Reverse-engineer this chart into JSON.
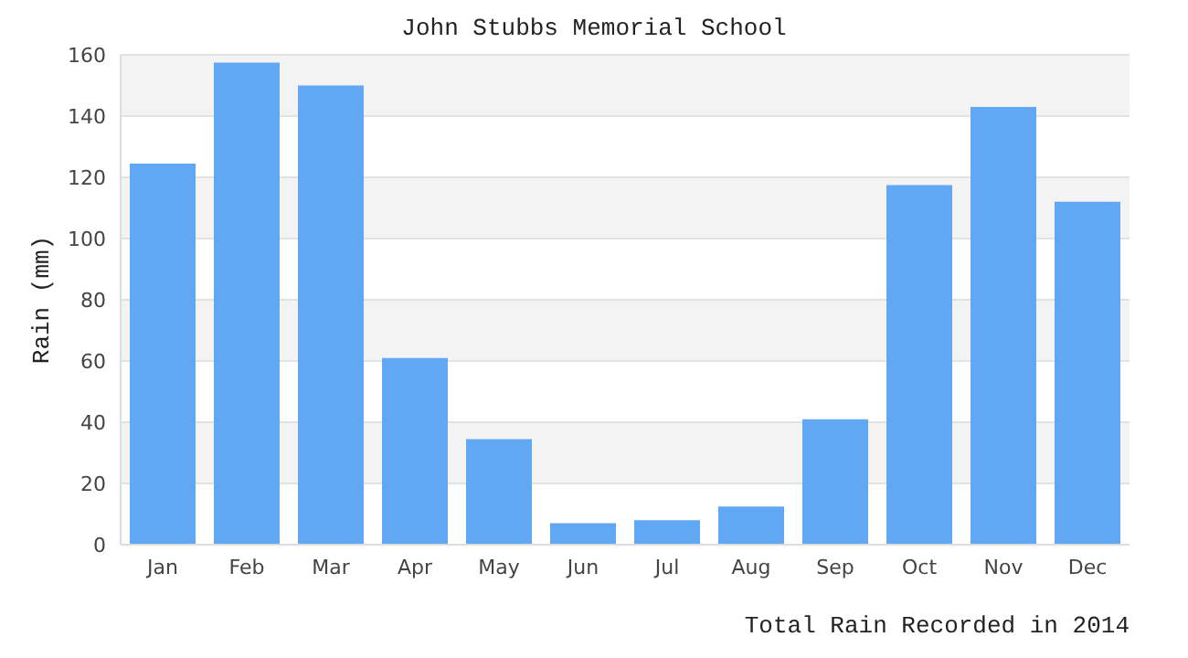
{
  "chart_data": {
    "type": "bar",
    "title": "John Stubbs Memorial School",
    "xlabel": "Total Rain Recorded in 2014",
    "ylabel": "Rain (mm)",
    "categories": [
      "Jan",
      "Feb",
      "Mar",
      "Apr",
      "May",
      "Jun",
      "Jul",
      "Aug",
      "Sep",
      "Oct",
      "Nov",
      "Dec"
    ],
    "values": [
      124.5,
      157.5,
      150,
      61,
      34.5,
      7,
      8,
      12.5,
      41,
      117.5,
      143,
      112
    ],
    "color": "#60a7f4",
    "ylim": [
      0,
      160
    ],
    "yticks": [
      0,
      20,
      40,
      60,
      80,
      100,
      120,
      140,
      160
    ],
    "grid": "y"
  }
}
